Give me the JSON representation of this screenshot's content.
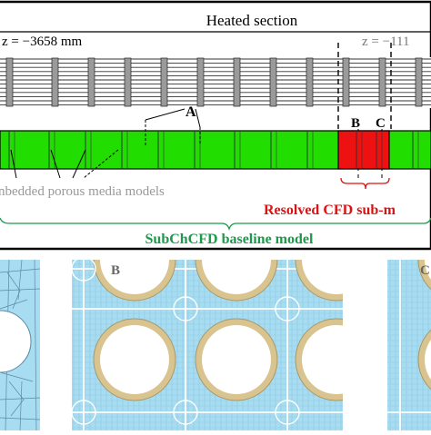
{
  "top_panel": {
    "heated_section_label": "Heated section",
    "z_start_label": "z = −3658 mm",
    "z_end_label": "z = −111"
  },
  "middle_panel": {
    "label_a": "A",
    "label_b": "B",
    "label_c": "C",
    "porous_label": "nbedded porous media models",
    "resolved_label": "Resolved CFD sub-m",
    "baseline_label": "SubChCFD baseline model"
  },
  "bottom_panel": {
    "label_b": "B",
    "label_c": "C"
  },
  "colors": {
    "porous_green": "#22dd00",
    "resolved_red": "#ee1111",
    "baseline_green": "#1a9a4a",
    "resolved_text_red": "#dd1111",
    "mesh_blue": "#a8dcf0",
    "cladding_tan": "#d9c490",
    "label_gray": "#999999"
  }
}
